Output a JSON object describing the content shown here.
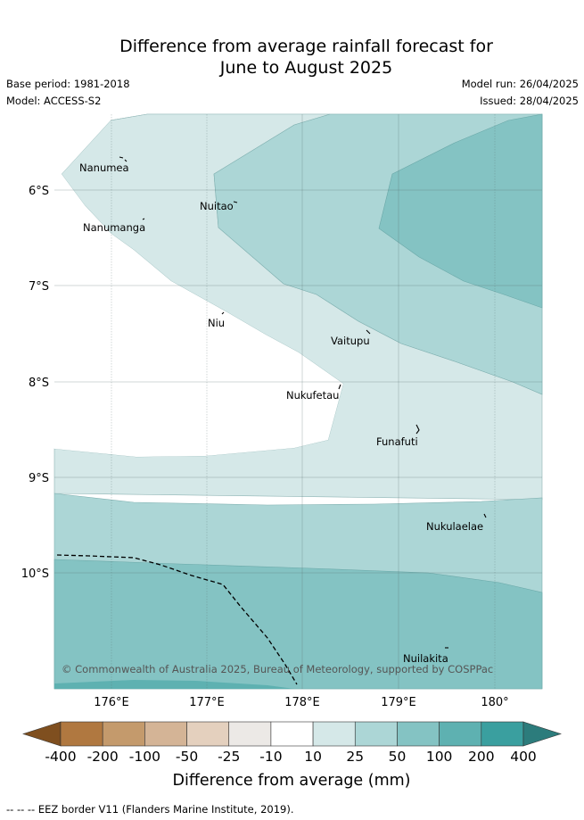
{
  "title": {
    "line1": "Difference from average rainfall forecast for",
    "line2": "June to August 2025"
  },
  "meta": {
    "base_period": "Base period: 1981-2018",
    "model": "Model: ACCESS-S2",
    "model_run": "Model run: 26/04/2025",
    "issued": "Issued: 28/04/2025"
  },
  "axes": {
    "lon_ticks": [
      "176°E",
      "177°E",
      "178°E",
      "179°E",
      "180°"
    ],
    "lat_ticks": [
      "6°S",
      "7°S",
      "8°S",
      "9°S",
      "10°S"
    ]
  },
  "places": [
    {
      "name": "Nanumea"
    },
    {
      "name": "Nuitao"
    },
    {
      "name": "Nanumanga"
    },
    {
      "name": "Niu"
    },
    {
      "name": "Vaitupu"
    },
    {
      "name": "Nukufetau"
    },
    {
      "name": "Funafuti"
    },
    {
      "name": "Nukulaelae"
    },
    {
      "name": "Nuilakita"
    }
  ],
  "copyright": "© Commonwealth of Australia 2025, Bureau of Meteorology, supported by COSPPac",
  "colorbar": {
    "labels": [
      "-400",
      "-200",
      "-100",
      "-50",
      "-25",
      "-10",
      "10",
      "25",
      "50",
      "100",
      "200",
      "400"
    ],
    "colors": [
      "#7f4f1f",
      "#b07840",
      "#c49a6c",
      "#d4b496",
      "#e4d0be",
      "#ece9e6",
      "#ffffff",
      "#d5e8e8",
      "#acd6d6",
      "#84c3c3",
      "#5eb1b1",
      "#3a9f9f",
      "#2c7c7c"
    ],
    "title": "Difference from average (mm)"
  },
  "footer": "-- -- -- EEZ border V11 (Flanders Marine Institute, 2019)."
}
